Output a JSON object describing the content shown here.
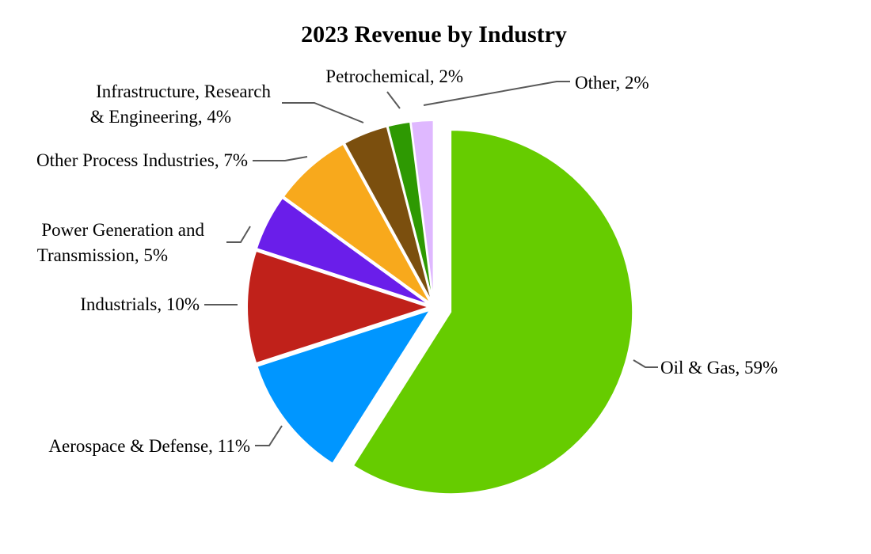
{
  "chart_data": {
    "type": "pie",
    "title": "2023 Revenue by Industry",
    "slices": [
      {
        "label": "Oil & Gas, 59%",
        "value": 59,
        "color": "#66cc00",
        "exploded": true
      },
      {
        "label": "Aerospace & Defense, 11%",
        "value": 11,
        "color": "#0096ff"
      },
      {
        "label": "Industrials, 10%",
        "value": 10,
        "color": "#c0211a"
      },
      {
        "label": "Power Generation and Transmission, 5%",
        "value": 5,
        "color": "#6a1eea"
      },
      {
        "label": "Other Process Industries, 7%",
        "value": 7,
        "color": "#f8a91c"
      },
      {
        "label": "Infrastructure, Research & Engineering, 4%",
        "value": 4,
        "color": "#7b4f0e"
      },
      {
        "label": "Petrochemical, 2%",
        "value": 2,
        "color": "#2e9902"
      },
      {
        "label": "Other, 2%",
        "value": 2,
        "color": "#dfb8ff"
      }
    ],
    "start_angle": "12 o'clock",
    "direction": "clockwise",
    "legend": "none",
    "data_labels": "outside with leader lines"
  }
}
